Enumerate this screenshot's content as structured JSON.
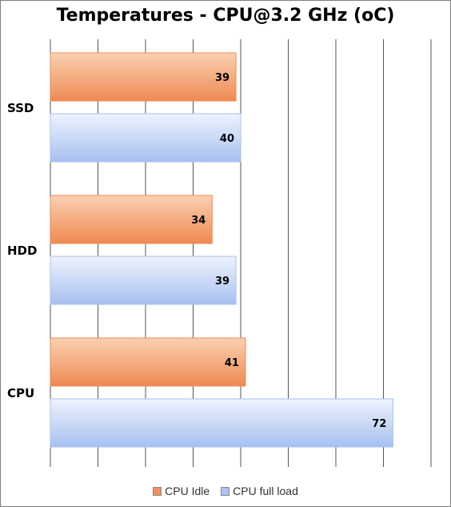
{
  "chart_data": {
    "type": "bar",
    "orientation": "horizontal",
    "title": "Temperatures - CPU@3.2 GHz (oC)",
    "categories": [
      "SSD",
      "HDD",
      "CPU"
    ],
    "series": [
      {
        "name": "CPU Idle",
        "values": [
          39,
          34,
          41
        ],
        "color": "#f0925c"
      },
      {
        "name": "CPU full load",
        "values": [
          40,
          39,
          72
        ],
        "color": "#a9c3f2"
      }
    ],
    "xlim": [
      0,
      80
    ],
    "grid": true,
    "legend_position": "bottom"
  },
  "colors": {
    "idle_light": "#fbd0b2",
    "idle_dark": "#ee8a52",
    "load_light": "#eef3fd",
    "load_dark": "#a7c0f0",
    "gridline": "#555555"
  }
}
